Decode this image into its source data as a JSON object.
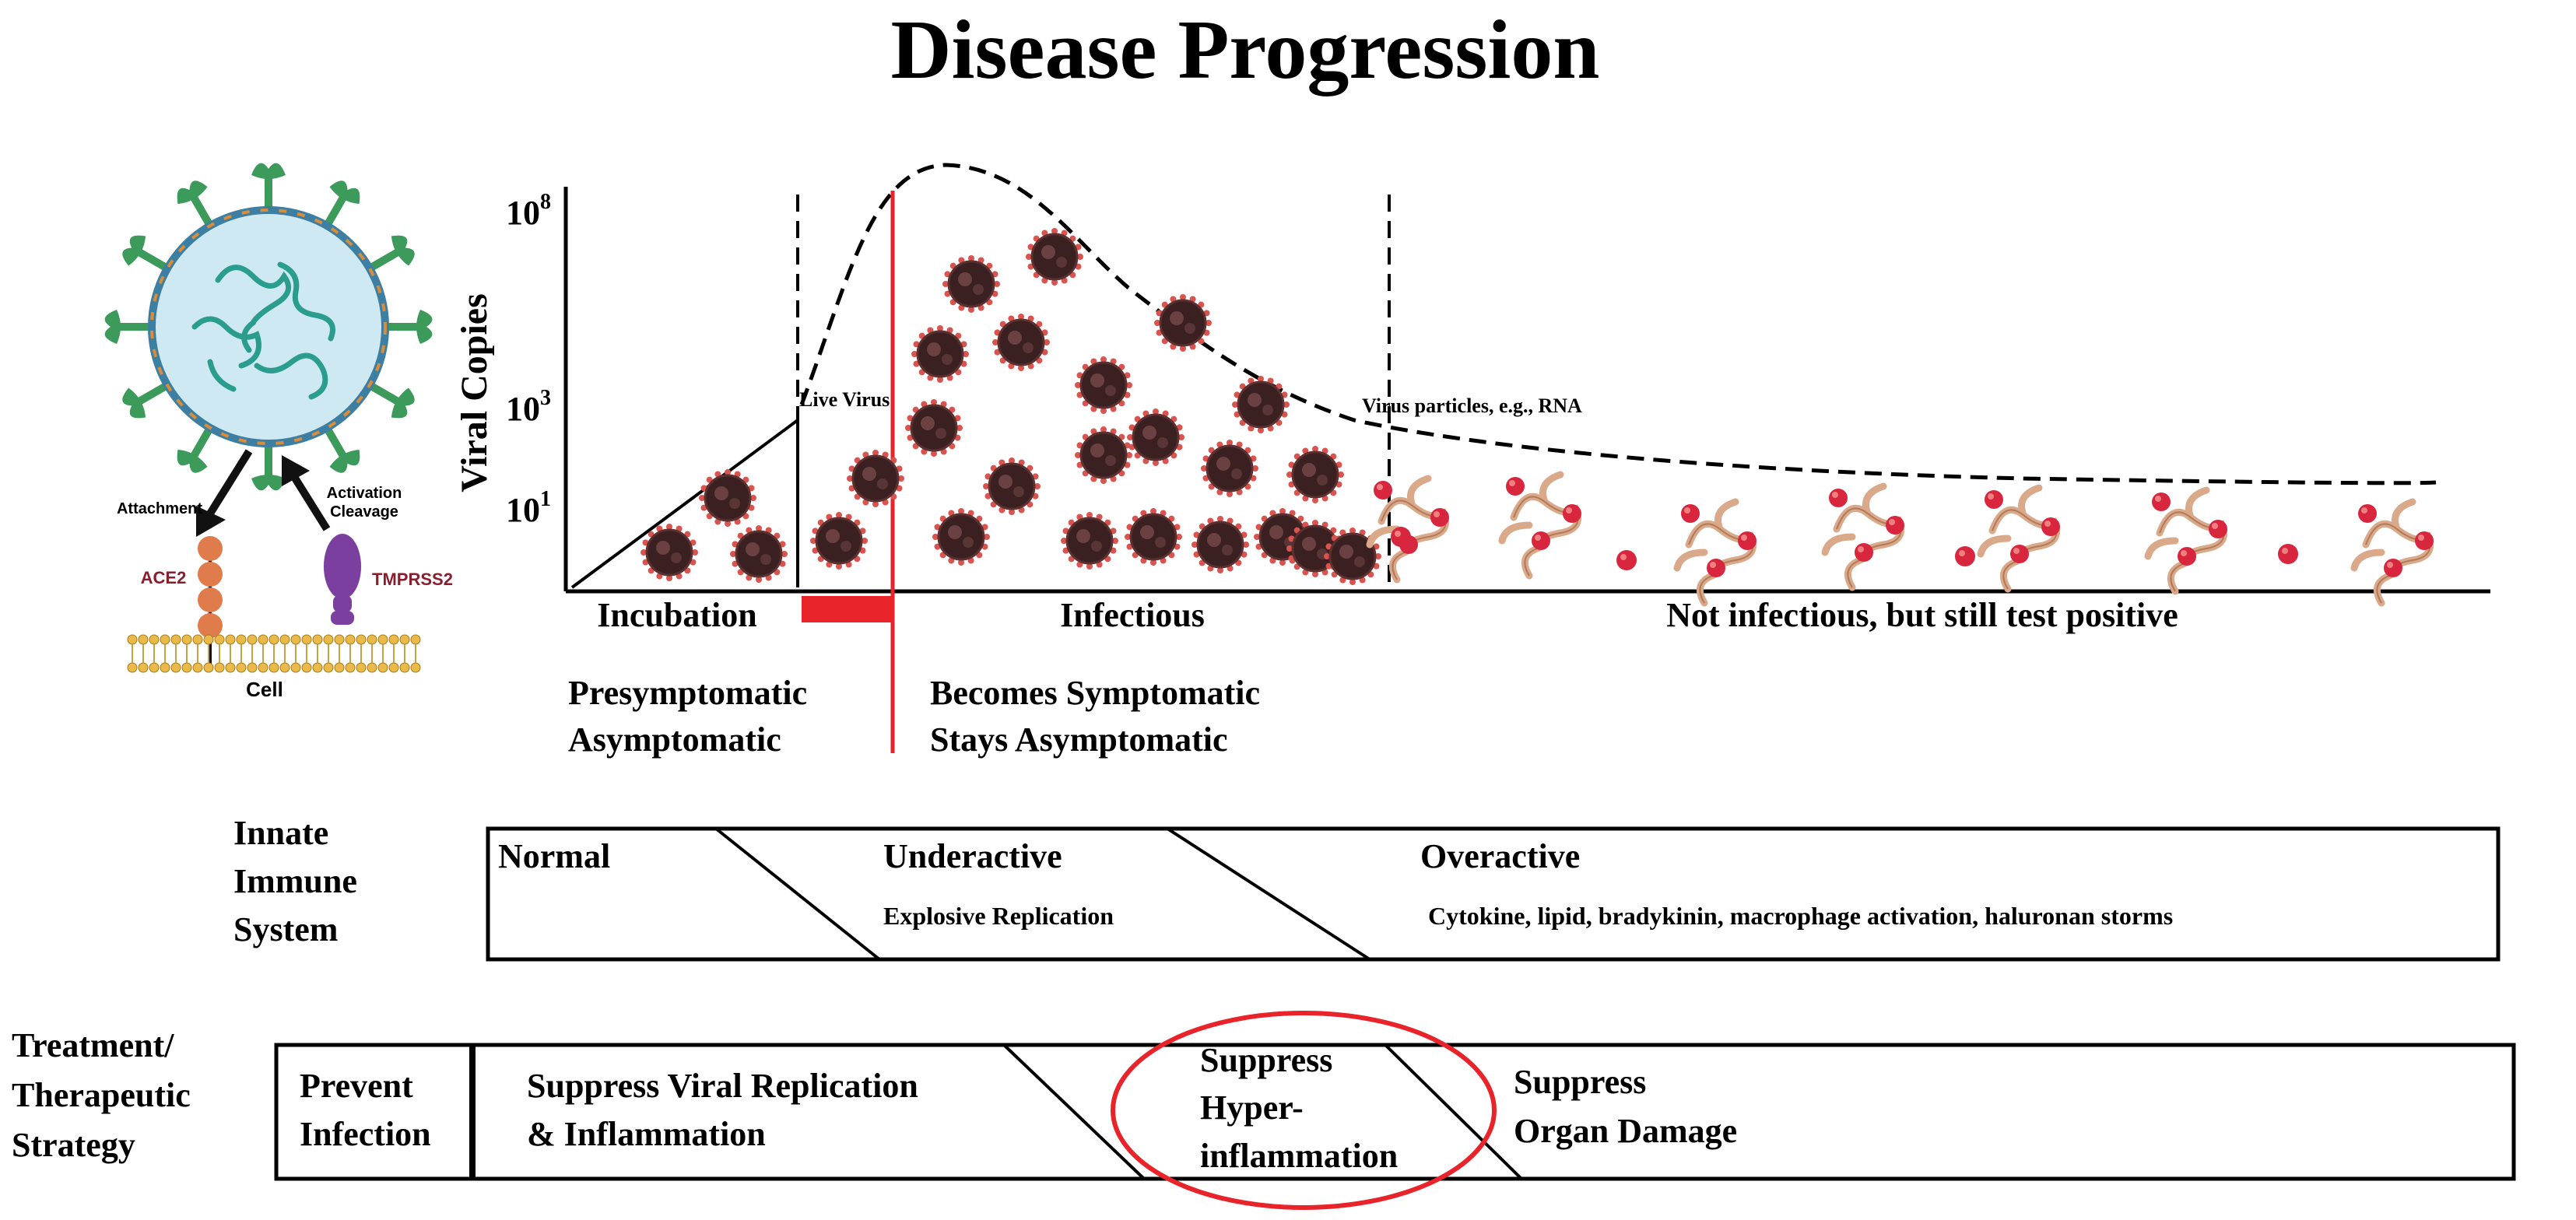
{
  "title": "Disease Progression",
  "virus_panel": {
    "attachment_label": "Attachment",
    "activation_label_line1": "Activation",
    "activation_label_line2": "Cleavage",
    "ace2_label": "ACE2",
    "tmprss2_label": "TMPRSS2",
    "cell_label": "Cell"
  },
  "chart": {
    "y_axis_label": "Viral Copies",
    "y_ticks": [
      {
        "base": "10",
        "exp": "8"
      },
      {
        "base": "10",
        "exp": "3"
      },
      {
        "base": "10",
        "exp": "1"
      }
    ],
    "live_virus_label": "Live Virus",
    "virus_particles_label": "Virus particles, e.g., RNA",
    "phases": {
      "incubation": "Incubation",
      "infectious": "Infectious",
      "not_infectious": "Not infectious, but still test positive"
    },
    "presymptomatic": [
      "Presymptomatic",
      "Asymptomatic"
    ],
    "symptomatic": [
      "Becomes Symptomatic",
      "Stays Asymptomatic"
    ]
  },
  "innate_immune": {
    "label": [
      "Innate",
      "Immune",
      "System"
    ],
    "normal": "Normal",
    "underactive": "Underactive",
    "underactive_detail": "Explosive Replication",
    "overactive": "Overactive",
    "overactive_detail": "Cytokine, lipid, bradykinin, macrophage activation, haluronan storms"
  },
  "treatment": {
    "label": [
      "Treatment/",
      "Therapeutic",
      "Strategy"
    ],
    "prevent": [
      "Prevent",
      "Infection"
    ],
    "suppress_viral": [
      "Suppress Viral Replication",
      "& Inflammation"
    ],
    "suppress_hyper": [
      "Suppress",
      "Hyper-",
      "inflammation"
    ],
    "suppress_organ": [
      "Suppress",
      "Organ Damage"
    ]
  },
  "colors": {
    "red": "#e8232a",
    "spike_green": "#3c9a5b",
    "virus_membrane": "#cfe9f3",
    "rna_teal": "#2a9d8f",
    "ace2_orange": "#e07b4b",
    "tmprss2_purple": "#7b3fa0",
    "virion_dark": "#3a2020",
    "virion_spike": "#d9534f",
    "rna_tan": "#d9a98a",
    "rna_red": "#d7263d"
  }
}
